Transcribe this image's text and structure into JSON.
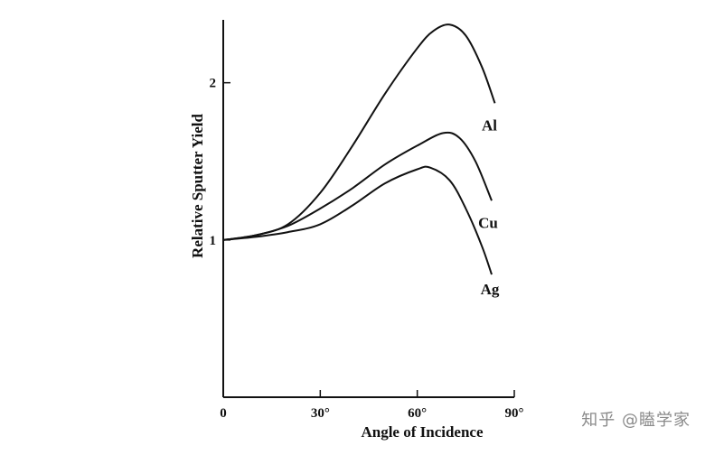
{
  "chart_data": {
    "type": "line",
    "title": "",
    "xlabel": "Angle of Incidence",
    "ylabel": "Relative Sputter Yield",
    "xlim": [
      0,
      90
    ],
    "ylim": [
      0,
      2.4
    ],
    "x_ticks": [
      {
        "value": 0,
        "label": "0"
      },
      {
        "value": 30,
        "label": "30°"
      },
      {
        "value": 60,
        "label": "60°"
      },
      {
        "value": 90,
        "label": "90°"
      }
    ],
    "y_ticks": [
      {
        "value": 1,
        "label": "1"
      },
      {
        "value": 2,
        "label": "2"
      }
    ],
    "grid": false,
    "legend": "inline-labels",
    "series": [
      {
        "name": "Al",
        "x": [
          0,
          10,
          20,
          30,
          40,
          50,
          60,
          65,
          70,
          75,
          80,
          84
        ],
        "y": [
          1.0,
          1.03,
          1.1,
          1.3,
          1.6,
          1.93,
          2.22,
          2.33,
          2.37,
          2.3,
          2.1,
          1.87
        ]
      },
      {
        "name": "Cu",
        "x": [
          0,
          10,
          20,
          30,
          40,
          50,
          60,
          68,
          73,
          78,
          83
        ],
        "y": [
          1.0,
          1.03,
          1.09,
          1.2,
          1.33,
          1.48,
          1.6,
          1.68,
          1.65,
          1.5,
          1.25
        ]
      },
      {
        "name": "Ag",
        "x": [
          0,
          10,
          20,
          30,
          40,
          50,
          60,
          64,
          70,
          75,
          80,
          83
        ],
        "y": [
          1.0,
          1.02,
          1.05,
          1.1,
          1.22,
          1.36,
          1.45,
          1.46,
          1.38,
          1.2,
          0.96,
          0.78
        ]
      }
    ]
  },
  "watermark": "知乎 @瞌学家"
}
